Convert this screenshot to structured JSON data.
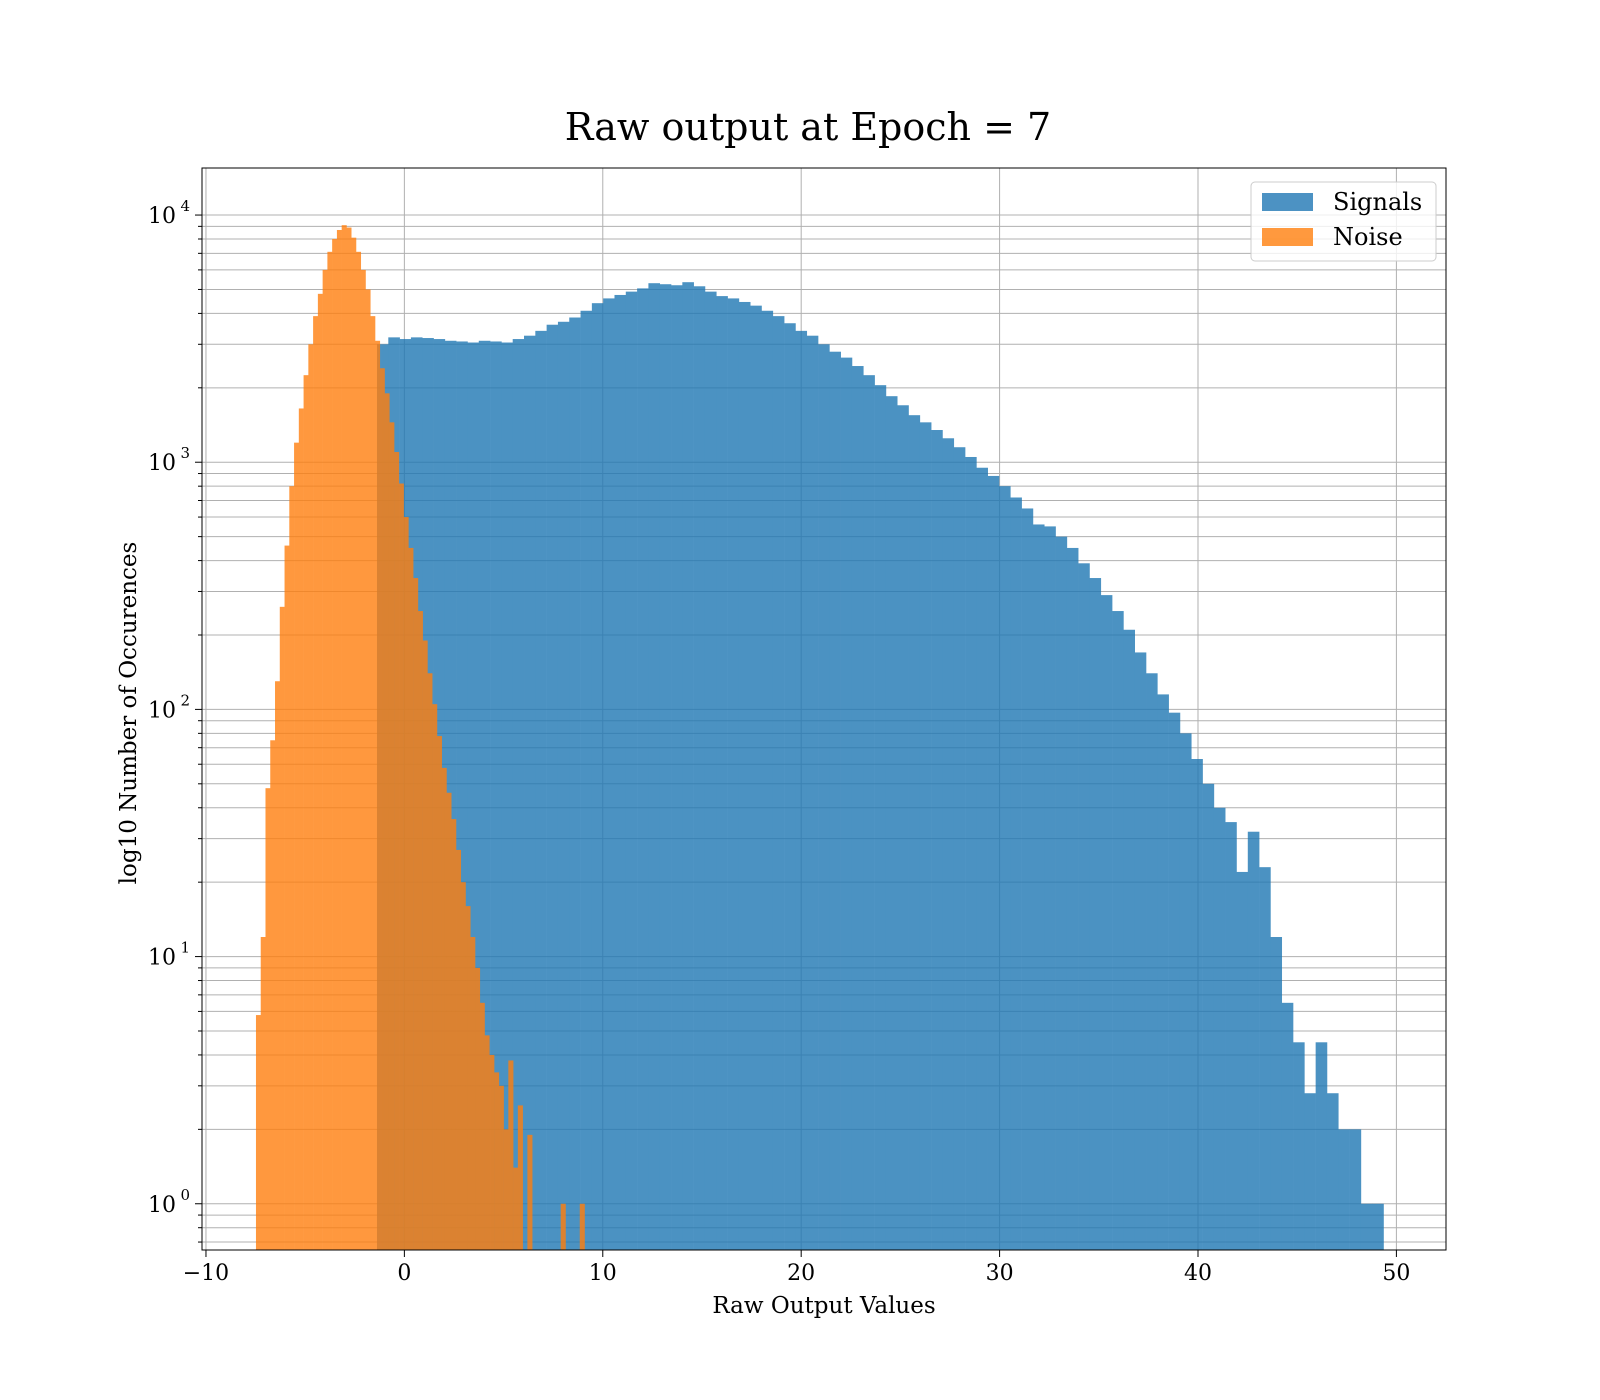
{
  "chart_data": {
    "type": "histogram",
    "title": "Raw output at Epoch = 7",
    "xlabel": "Raw Output Values",
    "ylabel": "log10 Number of Occurences",
    "xlim": [
      -10.2,
      52.5
    ],
    "ylim": [
      0.65,
      15500
    ],
    "yscale": "log",
    "grid": true,
    "legend_position": "top-right",
    "x_ticks": [
      -10,
      0,
      10,
      20,
      30,
      40,
      50
    ],
    "x_tick_labels": [
      "−10",
      "0",
      "10",
      "20",
      "30",
      "40",
      "50"
    ],
    "y_ticks": [
      1,
      10,
      100,
      1000,
      10000
    ],
    "y_tick_labels": [
      {
        "base": "10",
        "exp": "0"
      },
      {
        "base": "10",
        "exp": "1"
      },
      {
        "base": "10",
        "exp": "2"
      },
      {
        "base": "10",
        "exp": "3"
      },
      {
        "base": "10",
        "exp": "4"
      }
    ],
    "series": [
      {
        "name": "Signals",
        "color": "#1f77b4",
        "opacity": 0.8,
        "bin_edges": [
          -1.38,
          -0.81,
          -0.24,
          0.33,
          0.9,
          1.47,
          2.04,
          2.61,
          3.18,
          3.75,
          4.32,
          4.89,
          5.46,
          6.03,
          6.6,
          7.17,
          7.74,
          8.31,
          8.88,
          9.45,
          10.02,
          10.59,
          11.16,
          11.73,
          12.3,
          12.87,
          13.44,
          14.01,
          14.58,
          15.15,
          15.72,
          16.29,
          16.86,
          17.43,
          18.0,
          18.57,
          19.14,
          19.71,
          20.28,
          20.85,
          21.42,
          21.99,
          22.56,
          23.13,
          23.7,
          24.27,
          24.84,
          25.41,
          25.98,
          26.55,
          27.12,
          27.69,
          28.26,
          28.83,
          29.4,
          29.97,
          30.54,
          31.11,
          31.68,
          32.25,
          32.82,
          33.39,
          33.96,
          34.53,
          35.1,
          35.67,
          36.24,
          36.81,
          37.38,
          37.95,
          38.52,
          39.09,
          39.66,
          40.23,
          40.8,
          41.37,
          41.94,
          42.51,
          43.08,
          43.65,
          44.22,
          44.79,
          45.36,
          45.93,
          46.5,
          47.07,
          47.64,
          48.21,
          48.78,
          49.35
        ],
        "counts": [
          3000,
          3200,
          3150,
          3200,
          3180,
          3150,
          3100,
          3080,
          3050,
          3100,
          3080,
          3050,
          3150,
          3250,
          3400,
          3600,
          3700,
          3850,
          4100,
          4400,
          4600,
          4750,
          4900,
          5050,
          5300,
          5250,
          5200,
          5350,
          5150,
          4900,
          4700,
          4600,
          4450,
          4300,
          4100,
          3900,
          3650,
          3400,
          3250,
          3000,
          2800,
          2650,
          2450,
          2250,
          2050,
          1850,
          1700,
          1550,
          1450,
          1350,
          1250,
          1150,
          1050,
          950,
          880,
          800,
          720,
          650,
          560,
          550,
          500,
          450,
          390,
          340,
          290,
          250,
          210,
          170,
          140,
          115,
          97,
          80,
          63,
          50,
          40,
          35,
          22,
          32,
          23,
          12,
          6.5,
          4.5,
          2.8,
          4.5,
          2.8,
          2.0,
          2.0,
          1.0,
          1.0
        ]
      },
      {
        "name": "Noise",
        "color": "#ff7f0e",
        "opacity": 0.8,
        "bin_edges": [
          -7.48,
          -7.24,
          -7.0,
          -6.76,
          -6.52,
          -6.28,
          -6.04,
          -5.8,
          -5.56,
          -5.32,
          -5.08,
          -4.84,
          -4.6,
          -4.36,
          -4.12,
          -3.88,
          -3.64,
          -3.4,
          -3.16,
          -2.92,
          -2.68,
          -2.44,
          -2.2,
          -1.96,
          -1.72,
          -1.48,
          -1.24,
          -1.0,
          -0.76,
          -0.52,
          -0.28,
          -0.04,
          0.2,
          0.44,
          0.68,
          0.92,
          1.16,
          1.4,
          1.64,
          1.88,
          2.12,
          2.36,
          2.6,
          2.84,
          3.08,
          3.32,
          3.56,
          3.8,
          4.04,
          4.28,
          4.52,
          4.76,
          5.0,
          5.24,
          5.48,
          5.72,
          5.96,
          6.2,
          6.44,
          6.68,
          6.92,
          7.16,
          7.4,
          7.64,
          7.88,
          8.12,
          8.36,
          8.6,
          8.84,
          9.08
        ],
        "counts": [
          5.8,
          12,
          48,
          75,
          130,
          260,
          460,
          800,
          1200,
          1650,
          2250,
          3000,
          3900,
          4800,
          6000,
          7100,
          8000,
          8700,
          9100,
          8900,
          8100,
          7100,
          6000,
          5000,
          3900,
          3100,
          2400,
          1900,
          1450,
          1100,
          820,
          600,
          450,
          340,
          250,
          190,
          140,
          105,
          78,
          58,
          46,
          36,
          27,
          20,
          16,
          12,
          9,
          6.5,
          4.8,
          4.0,
          3.4,
          3.0,
          2.0,
          3.8,
          1.4,
          2.5,
          0.0,
          1.9,
          0.0,
          0.0,
          0.0,
          0.0,
          0.0,
          0.0,
          1.0,
          0.0,
          0.0,
          0.0,
          1.0
        ]
      }
    ]
  }
}
